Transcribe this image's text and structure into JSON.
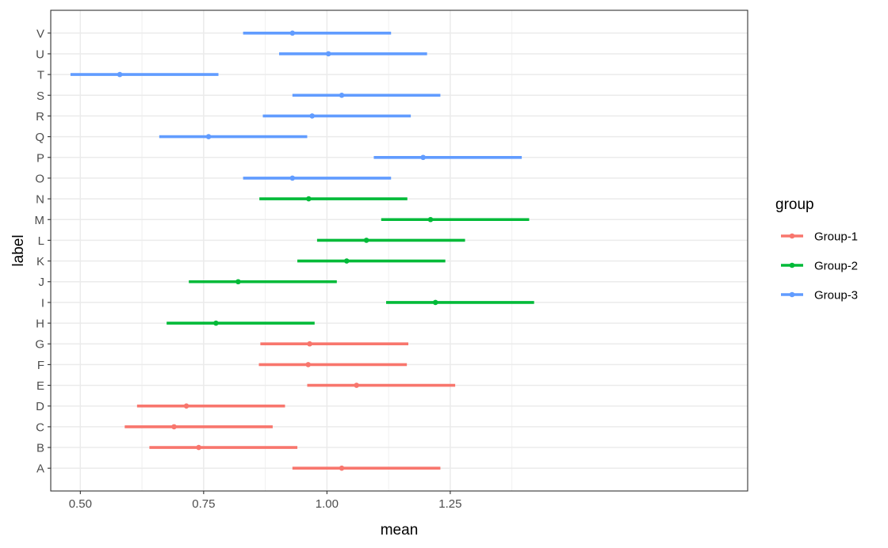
{
  "chart_data": {
    "type": "errorbar",
    "xlabel": "mean",
    "ylabel": "label",
    "xlim": [
      0.44,
      1.853
    ],
    "x_ticks": [
      "0.50",
      "0.75",
      "1.00",
      "1.25"
    ],
    "x_tick_values": [
      0.5,
      0.75,
      1.0,
      1.25
    ],
    "grid": true,
    "legend": {
      "title": "group",
      "position": "right",
      "entries": [
        "Group-1",
        "Group-2",
        "Group-3"
      ]
    },
    "colors": {
      "Group-1": "#F8766D",
      "Group-2": "#00BA38",
      "Group-3": "#619CFF"
    },
    "categories": [
      "A",
      "B",
      "C",
      "D",
      "E",
      "F",
      "G",
      "H",
      "I",
      "J",
      "K",
      "L",
      "M",
      "N",
      "O",
      "P",
      "Q",
      "R",
      "S",
      "T",
      "U",
      "V"
    ],
    "rows": [
      {
        "label": "A",
        "group": "Group-1",
        "mean": 1.03,
        "lower": 0.93,
        "upper": 1.23
      },
      {
        "label": "B",
        "group": "Group-1",
        "mean": 0.74,
        "lower": 0.64,
        "upper": 0.94
      },
      {
        "label": "C",
        "group": "Group-1",
        "mean": 0.69,
        "lower": 0.59,
        "upper": 0.89
      },
      {
        "label": "D",
        "group": "Group-1",
        "mean": 0.715,
        "lower": 0.615,
        "upper": 0.915
      },
      {
        "label": "E",
        "group": "Group-1",
        "mean": 1.06,
        "lower": 0.96,
        "upper": 1.26
      },
      {
        "label": "F",
        "group": "Group-1",
        "mean": 0.962,
        "lower": 0.862,
        "upper": 1.162
      },
      {
        "label": "G",
        "group": "Group-1",
        "mean": 0.965,
        "lower": 0.865,
        "upper": 1.165
      },
      {
        "label": "H",
        "group": "Group-2",
        "mean": 0.775,
        "lower": 0.675,
        "upper": 0.975
      },
      {
        "label": "I",
        "group": "Group-2",
        "mean": 1.22,
        "lower": 1.12,
        "upper": 1.42
      },
      {
        "label": "J",
        "group": "Group-2",
        "mean": 0.82,
        "lower": 0.72,
        "upper": 1.02
      },
      {
        "label": "K",
        "group": "Group-2",
        "mean": 1.04,
        "lower": 0.94,
        "upper": 1.24
      },
      {
        "label": "L",
        "group": "Group-2",
        "mean": 1.08,
        "lower": 0.98,
        "upper": 1.28
      },
      {
        "label": "M",
        "group": "Group-2",
        "mean": 1.21,
        "lower": 1.11,
        "upper": 1.41
      },
      {
        "label": "N",
        "group": "Group-2",
        "mean": 0.963,
        "lower": 0.863,
        "upper": 1.163
      },
      {
        "label": "O",
        "group": "Group-3",
        "mean": 0.93,
        "lower": 0.83,
        "upper": 1.13
      },
      {
        "label": "P",
        "group": "Group-3",
        "mean": 1.195,
        "lower": 1.095,
        "upper": 1.395
      },
      {
        "label": "Q",
        "group": "Group-3",
        "mean": 0.76,
        "lower": 0.66,
        "upper": 0.96
      },
      {
        "label": "R",
        "group": "Group-3",
        "mean": 0.97,
        "lower": 0.87,
        "upper": 1.17
      },
      {
        "label": "S",
        "group": "Group-3",
        "mean": 1.03,
        "lower": 0.93,
        "upper": 1.23
      },
      {
        "label": "T",
        "group": "Group-3",
        "mean": 0.58,
        "lower": 0.48,
        "upper": 0.78
      },
      {
        "label": "U",
        "group": "Group-3",
        "mean": 1.003,
        "lower": 0.903,
        "upper": 1.203
      },
      {
        "label": "V",
        "group": "Group-3",
        "mean": 0.93,
        "lower": 0.83,
        "upper": 1.13
      }
    ]
  }
}
